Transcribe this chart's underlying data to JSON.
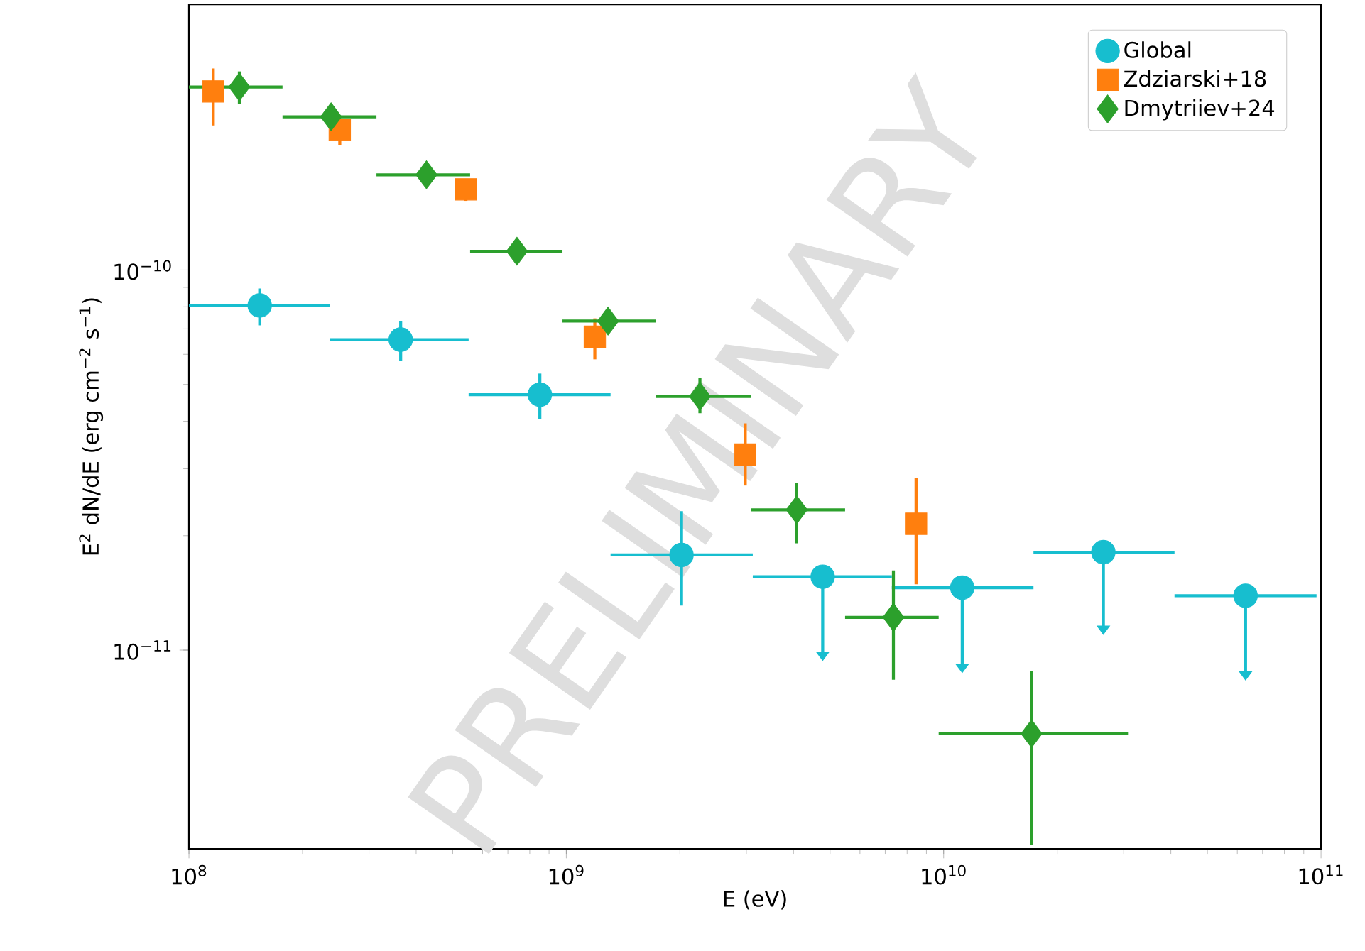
{
  "chart_data": {
    "type": "scatter",
    "xlabel": "E (eV)",
    "ylabel": "E$^{2}$ dN/dE (erg cm$^{−2}$ s$^{−1}$)",
    "log": "xy",
    "xlim": [
      100000000.0,
      100000000000.0
    ],
    "ylim": [
      3e-12,
      5e-10
    ],
    "xticks": [
      {
        "value": 100000000.0,
        "label": "10$^{8}$"
      },
      {
        "value": 1000000000.0,
        "label": "10$^{9}$"
      },
      {
        "value": 10000000000.0,
        "label": "10$^{10}$"
      },
      {
        "value": 100000000000.0,
        "label": "10$^{11}$"
      }
    ],
    "yticks": [
      {
        "value": 1e-11,
        "label": "10$^{−11}$"
      },
      {
        "value": 1e-10,
        "label": "10$^{−10}$"
      }
    ],
    "legend": "top right",
    "annotations": [
      "PRELIMINARY"
    ],
    "series": [
      {
        "name": "Global",
        "color": "#17becf",
        "marker": "circle",
        "x": [
          154000000.0,
          364000000.0,
          851000000.0,
          2020000000.0,
          4780000000.0,
          11200000000.0,
          26500000000.0,
          63100000000.0
        ],
        "values": [
          8.07e-11,
          6.56e-11,
          4.7e-11,
          1.78e-11,
          1.56e-11,
          1.46e-11,
          1.81e-11,
          1.39e-11
        ],
        "errors": [
          [
            7.15e-11,
            8.94e-11
          ],
          [
            5.77e-11,
            7.34e-11
          ],
          [
            4.06e-11,
            5.34e-11
          ],
          [
            1.31e-11,
            2.32e-11
          ],
          [
            9.9e-12,
            1.56e-11
          ],
          [
            9.2e-12,
            1.46e-11
          ],
          [
            1.16e-11,
            1.81e-11
          ],
          [
            8.8e-12,
            1.39e-11
          ]
        ],
        "xerrors": [
          [
            100000000.0,
            236000000.0
          ],
          [
            236000000.0,
            551000000.0
          ],
          [
            551000000.0,
            1310000000.0
          ],
          [
            1310000000.0,
            3120000000.0
          ],
          [
            3120000000.0,
            7290000000.0
          ],
          [
            7290000000.0,
            17300000000.0
          ],
          [
            17300000000.0,
            40900000000.0
          ],
          [
            40900000000.0,
            97300000000.0
          ]
        ]
      },
      {
        "name": "Zdziarski+18",
        "color": "#ff7f0e",
        "marker": "square",
        "x": [
          116000000.0,
          251000000.0,
          542000000.0,
          1190000000.0,
          2980000000.0,
          8450000000.0
        ],
        "values": [
          2.95e-10,
          2.34e-10,
          1.63e-10,
          6.68e-11,
          3.27e-11,
          2.15e-11
        ],
        "errors": [
          [
            2.4e-10,
            3.39e-10
          ],
          [
            2.13e-10,
            2.5e-10
          ],
          [
            1.52e-10,
            1.7e-10
          ],
          [
            5.82e-11,
            7.46e-11
          ],
          [
            2.71e-11,
            3.95e-11
          ],
          [
            1.49e-11,
            2.83e-11
          ]
        ]
      },
      {
        "name": "Dmytriiev+24",
        "color": "#2ca02c",
        "marker": "diamond",
        "x": [
          136000000.0,
          238000000.0,
          426000000.0,
          740000000.0,
          1290000000.0,
          2260000000.0,
          4080000000.0,
          7360000000.0,
          17100000000.0
        ],
        "values": [
          3.03e-10,
          2.53e-10,
          1.78e-10,
          1.12e-10,
          7.34e-11,
          4.65e-11,
          2.34e-11,
          1.22e-11,
          6.03e-12
        ],
        "errors": [
          [
            2.73e-10,
            3.33e-10
          ],
          null,
          null,
          null,
          [
            6.97e-11,
            7.73e-11
          ],
          [
            4.2e-11,
            5.2e-11
          ],
          [
            1.91e-11,
            2.75e-11
          ],
          [
            8.36e-12,
            1.62e-11
          ],
          [
            3.08e-12,
            8.8e-12
          ]
        ],
        "xerrors": [
          [
            100000000.0,
            177000000.0
          ],
          [
            177000000.0,
            314000000.0
          ],
          [
            314000000.0,
            556000000.0
          ],
          [
            556000000.0,
            977000000.0
          ],
          [
            977000000.0,
            1730000000.0
          ],
          [
            1730000000.0,
            3090000000.0
          ],
          [
            3090000000.0,
            5480000000.0
          ],
          [
            5480000000.0,
            9700000000.0
          ],
          [
            9700000000.0,
            30800000000.0
          ]
        ]
      }
    ]
  }
}
